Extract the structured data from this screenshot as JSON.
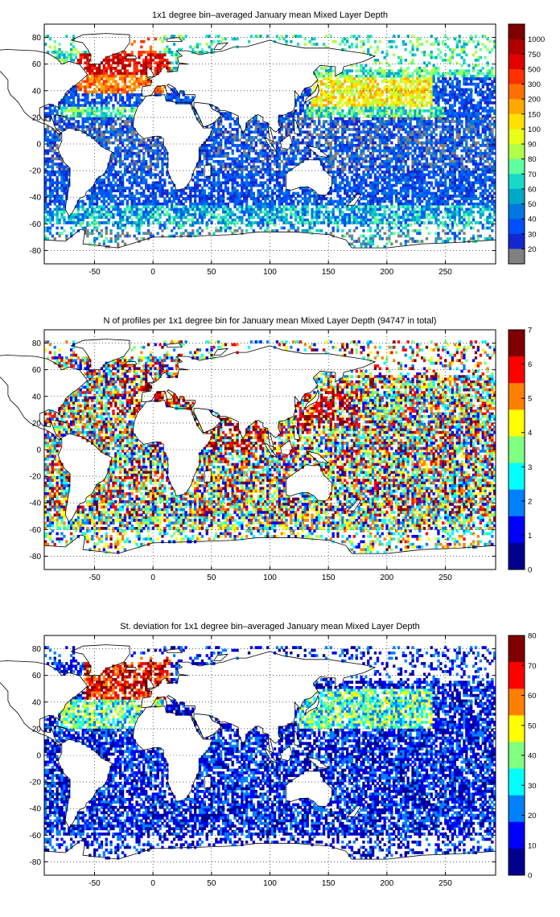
{
  "figure": {
    "panels": [
      {
        "title": "1x1 degree bin–averaged January mean Mixed Layer Depth",
        "lon_ticks": [
          "-50",
          "0",
          "50",
          "100",
          "150",
          "200",
          "250"
        ],
        "lat_ticks": [
          "80",
          "60",
          "40",
          "20",
          "0",
          "-20",
          "-40",
          "-60",
          "-80"
        ],
        "colorbar": {
          "labels": [
            "1000",
            "750",
            "500",
            "300",
            "200",
            "150",
            "100",
            "90",
            "80",
            "70",
            "60",
            "50",
            "40",
            "30",
            "20"
          ],
          "colors": [
            "#7f0000",
            "#b00000",
            "#e00000",
            "#ff3000",
            "#ff7000",
            "#ffa800",
            "#ffe000",
            "#e8ff18",
            "#b0ff48",
            "#60ffa0",
            "#18d8c8",
            "#00a8c8",
            "#0078e0",
            "#0050ff",
            "#1428d0",
            "#808080"
          ]
        }
      },
      {
        "title": "N of profiles per 1x1 degree bin for January mean Mixed Layer Depth  (94747 in total)",
        "lon_ticks": [
          "-50",
          "0",
          "50",
          "100",
          "150",
          "200",
          "250"
        ],
        "lat_ticks": [
          "80",
          "60",
          "40",
          "20",
          "0",
          "-20",
          "-40",
          "-60",
          "-80"
        ],
        "colorbar": {
          "labels": [
            "7",
            "6",
            "5",
            "4",
            "3",
            "2",
            "1",
            "0"
          ],
          "colors": [
            "#800000",
            "#ff0000",
            "#ff8000",
            "#ffff00",
            "#80ff80",
            "#00ffff",
            "#0080ff",
            "#0000ff",
            "#00008f"
          ]
        }
      },
      {
        "title": "St. deviation for 1x1 degree bin–averaged January mean Mixed Layer Depth",
        "lon_ticks": [
          "-50",
          "0",
          "50",
          "100",
          "150",
          "200",
          "250"
        ],
        "lat_ticks": [
          "80",
          "60",
          "40",
          "20",
          "0",
          "-20",
          "-40",
          "-60",
          "-80"
        ],
        "colorbar": {
          "labels": [
            "80",
            "70",
            "60",
            "50",
            "40",
            "30",
            "20",
            "10",
            "0"
          ],
          "colors": [
            "#800000",
            "#ff0000",
            "#ff8000",
            "#ffff00",
            "#80ff80",
            "#00ffff",
            "#0080ff",
            "#0000ff",
            "#00008f"
          ]
        }
      }
    ]
  }
}
